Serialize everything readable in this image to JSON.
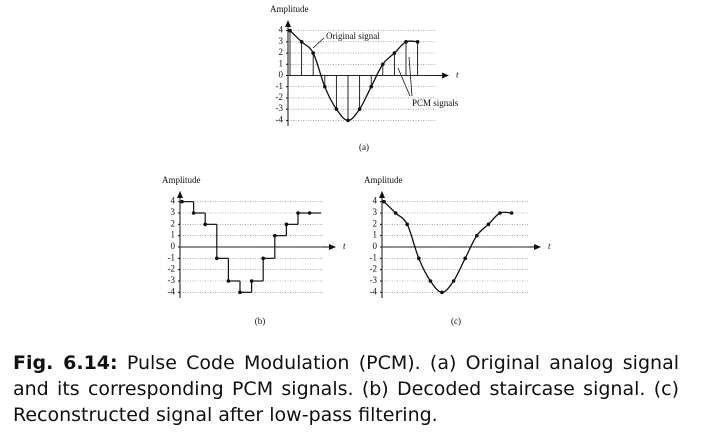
{
  "chart_data": [
    {
      "type": "stem",
      "y_label": "Amplitude",
      "x_label": "t",
      "label": "(a)",
      "values": [
        4,
        3,
        2,
        -1,
        -3,
        -4,
        -3,
        -1,
        1,
        2,
        3,
        3
      ],
      "ylim": [
        -4.5,
        4.5
      ],
      "yticks": [
        4,
        3,
        2,
        1,
        0,
        -1,
        -2,
        -3,
        -4
      ],
      "grid": true,
      "annotations": [
        "Original signal",
        "PCM signals"
      ]
    },
    {
      "type": "staircase",
      "y_label": "Amplitude",
      "x_label": "t",
      "label": "(b)",
      "values": [
        4,
        3,
        2,
        -1,
        -3,
        -4,
        -3,
        -1,
        1,
        2,
        3,
        3
      ],
      "ylim": [
        -4.5,
        4.5
      ],
      "yticks": [
        4,
        3,
        2,
        1,
        0,
        -1,
        -2,
        -3,
        -4
      ],
      "grid": true
    },
    {
      "type": "reconstructed",
      "y_label": "Amplitude",
      "x_label": "t",
      "label": "(c)",
      "values": [
        4,
        3,
        2,
        -1,
        -3,
        -4,
        -3,
        -1,
        1,
        2,
        3,
        3
      ],
      "ylim": [
        -4.5,
        4.5
      ],
      "yticks": [
        4,
        3,
        2,
        1,
        0,
        -1,
        -2,
        -3,
        -4
      ],
      "grid": true
    }
  ],
  "caption": {
    "label": "Fig. 6.14:",
    "text": "Pulse Code Modulation (PCM). (a) Original analog signal and its corresponding PCM signals. (b) Decoded staircase signal. (c) Reconstructed signal after low-pass filtering."
  }
}
